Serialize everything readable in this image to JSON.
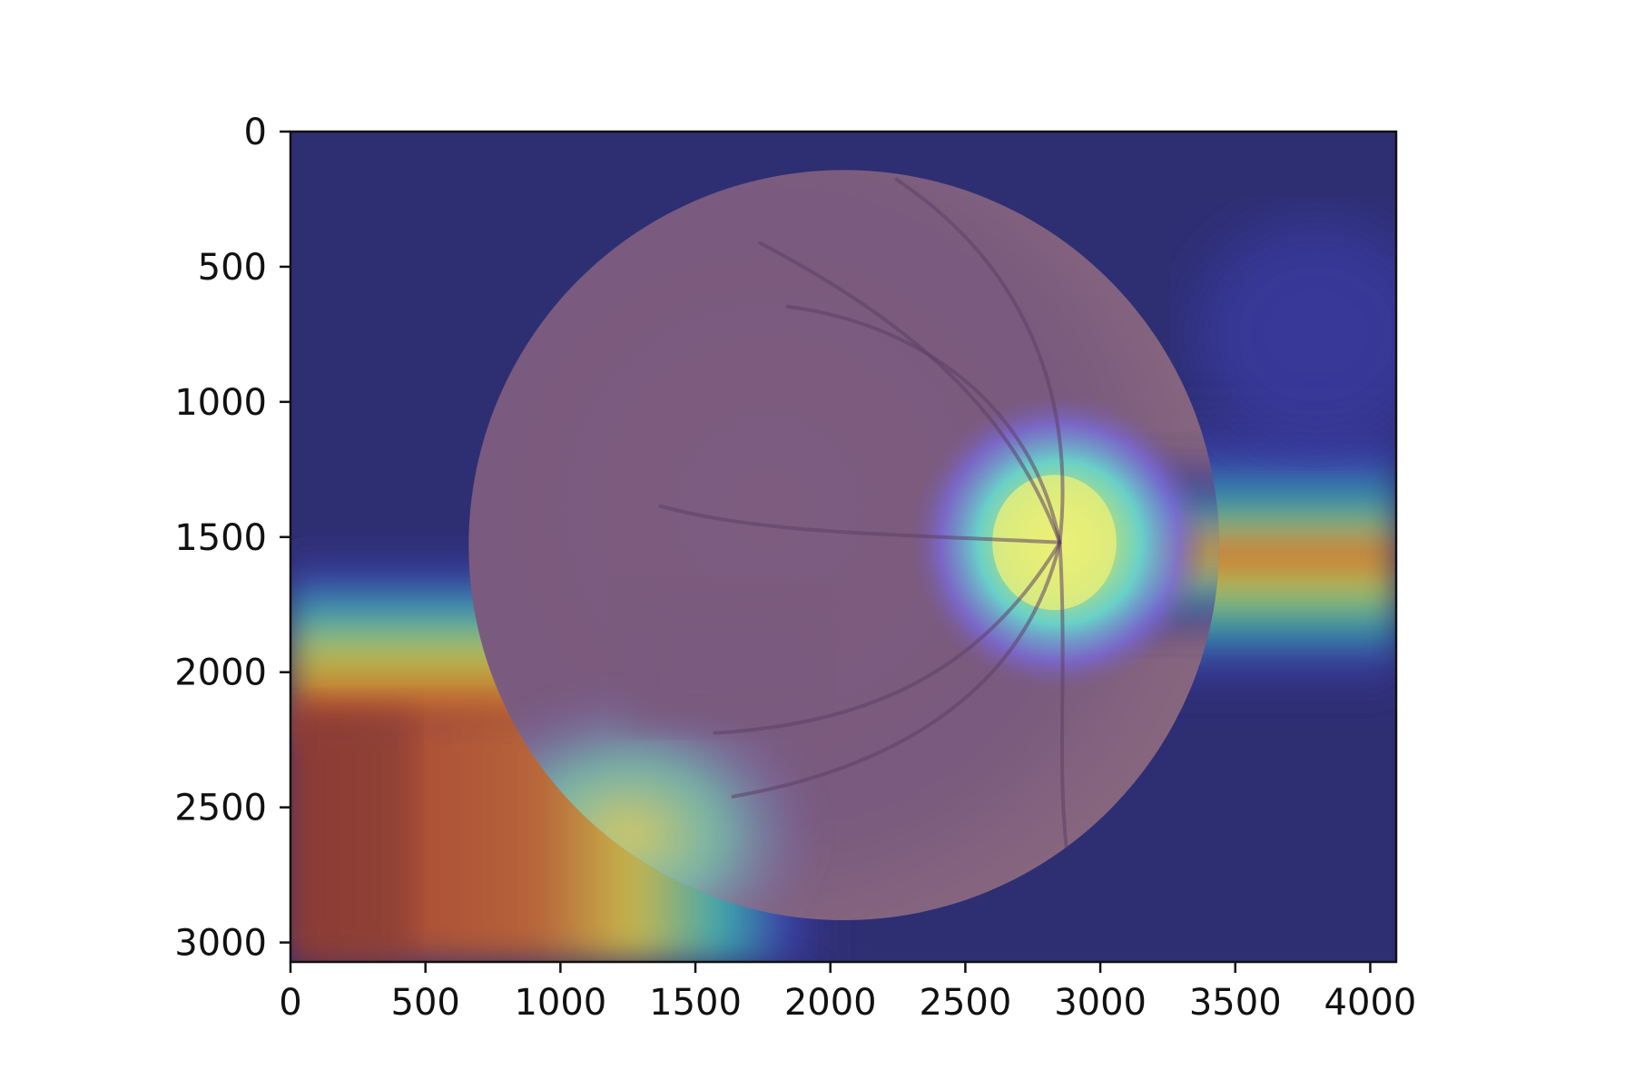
{
  "chart_data": {
    "type": "heatmap",
    "description_kind": "imshow heatmap overlay on retinal fundus image",
    "title": "",
    "xlabel": "",
    "ylabel": "",
    "xlim": [
      0,
      4096
    ],
    "ylim": [
      3072,
      0
    ],
    "x_ticks": [
      0,
      500,
      1000,
      1500,
      2000,
      2500,
      3000,
      3500,
      4000
    ],
    "y_ticks": [
      0,
      500,
      1000,
      1500,
      2000,
      2500,
      3000
    ],
    "x_tick_labels": [
      "0",
      "500",
      "1000",
      "1500",
      "2000",
      "2500",
      "3000",
      "3500",
      "4000"
    ],
    "y_tick_labels": [
      "0",
      "500",
      "1000",
      "1500",
      "2000",
      "2500",
      "3000"
    ],
    "colormap": "jet",
    "grid": false,
    "legend": "none",
    "fundus": {
      "center": [
        2050,
        1530
      ],
      "radius": 1390,
      "optic_disc_center": [
        2850,
        1520
      ],
      "optic_disc_radius": 230
    },
    "hotspots": [
      {
        "region": "optic disc and right band",
        "x_range": [
          2600,
          4096
        ],
        "y_range": [
          1380,
          1700
        ],
        "peak": [
          3200,
          1530
        ],
        "intensity": 1.0
      },
      {
        "region": "bottom-left block",
        "x_range": [
          0,
          1300
        ],
        "y_range": [
          2100,
          3072
        ],
        "peak": [
          200,
          2400
        ],
        "intensity": 0.9
      }
    ],
    "colors": {
      "low": "#2e2f73",
      "mid": "#4aa6a8",
      "high": "#c43a2c",
      "fundus_tint": "#7a5a7e"
    }
  }
}
